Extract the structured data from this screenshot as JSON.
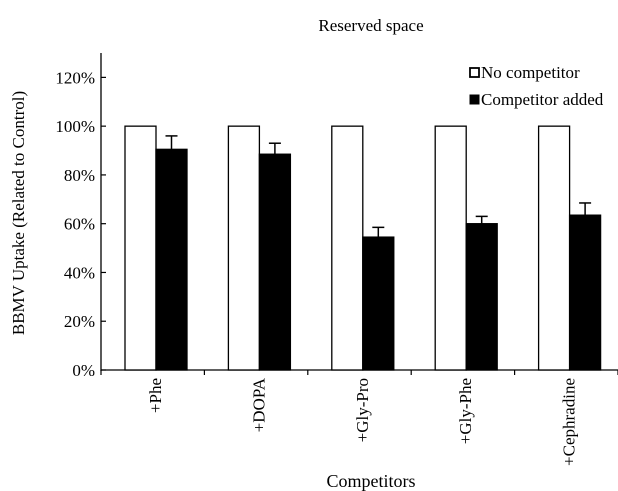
{
  "chart_data": {
    "type": "bar",
    "title": "Reserved space",
    "xlabel": "Competitors",
    "ylabel": "BBMV Uptake (Related to Control)",
    "categories": [
      "+Phe",
      "+DOPA",
      "+Gly-Pro",
      "+Gly-Phe",
      "+Cephradine"
    ],
    "series": [
      {
        "name": "No competitor",
        "values": [
          100,
          100,
          100,
          100,
          100
        ],
        "errors": [
          0,
          0,
          0,
          0,
          0
        ],
        "color": "#ffffff"
      },
      {
        "name": "Competitor added",
        "values": [
          90.5,
          88.5,
          54.5,
          60,
          63.5
        ],
        "errors": [
          5.5,
          4.5,
          4,
          3,
          5
        ],
        "color": "#000000"
      }
    ],
    "ylim": [
      0,
      130
    ],
    "yticks": [
      0,
      20,
      40,
      60,
      80,
      100,
      120
    ],
    "ytick_labels": [
      "0%",
      "20%",
      "40%",
      "60%",
      "80%",
      "100%",
      "120%"
    ],
    "grid": false,
    "legend_position": "top-right"
  }
}
